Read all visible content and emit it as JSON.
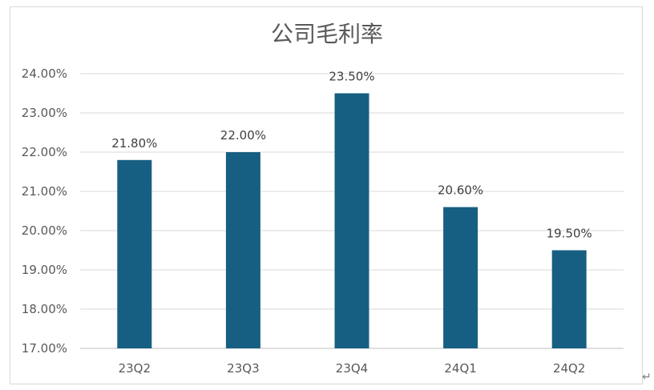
{
  "chart_data": {
    "type": "bar",
    "title": "公司毛利率",
    "categories": [
      "23Q2",
      "23Q3",
      "23Q4",
      "24Q1",
      "24Q2"
    ],
    "values": [
      21.8,
      22.0,
      23.5,
      20.6,
      19.5
    ],
    "data_labels": [
      "21.80%",
      "22.00%",
      "23.50%",
      "20.60%",
      "19.50%"
    ],
    "ylim": [
      17,
      24
    ],
    "yticks": [
      "17.00%",
      "18.00%",
      "19.00%",
      "20.00%",
      "21.00%",
      "22.00%",
      "23.00%",
      "24.00%"
    ],
    "xlabel": "",
    "ylabel": "",
    "grid": true,
    "legend": "none",
    "bar_color": "#175F82"
  },
  "return_mark": "↵"
}
